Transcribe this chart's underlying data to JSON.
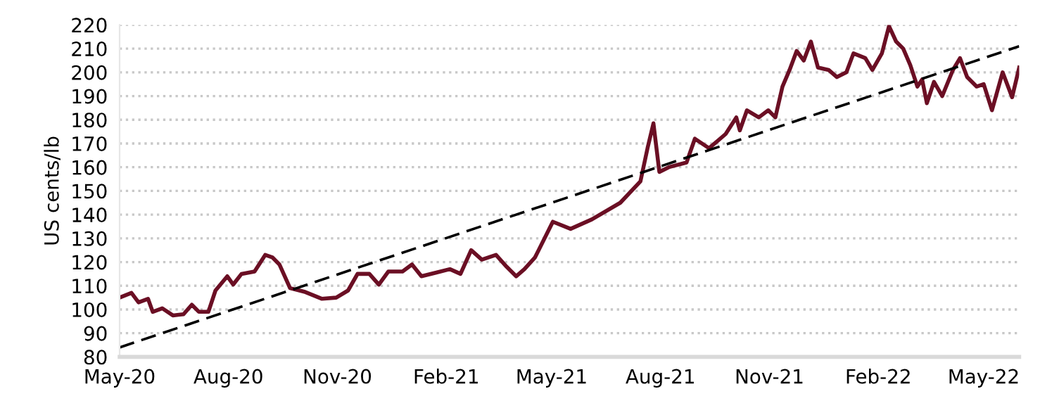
{
  "chart_data": {
    "type": "line",
    "ylabel": "US cents/lb",
    "xlim": [
      "2020-05-01",
      "2022-05-31"
    ],
    "ylim": [
      80,
      220
    ],
    "xticks": [
      {
        "value": "2020-05-01",
        "label": "May-20"
      },
      {
        "value": "2020-08-01",
        "label": "Aug-20"
      },
      {
        "value": "2020-11-01",
        "label": "Nov-20"
      },
      {
        "value": "2021-02-01",
        "label": "Feb-21"
      },
      {
        "value": "2021-05-01",
        "label": "May-21"
      },
      {
        "value": "2021-08-01",
        "label": "Aug-21"
      },
      {
        "value": "2021-11-01",
        "label": "Nov-21"
      },
      {
        "value": "2022-02-01",
        "label": "Feb-22"
      },
      {
        "value": "2022-05-01",
        "label": "May-22"
      }
    ],
    "yticks": [
      80,
      90,
      100,
      110,
      120,
      130,
      140,
      150,
      160,
      170,
      180,
      190,
      200,
      210,
      220
    ],
    "grid": "y",
    "legend": false,
    "series": [
      {
        "color": "#6b0f24",
        "line_style": "solid",
        "x": [
          "2020-05-01",
          "2020-05-11",
          "2020-05-17",
          "2020-05-25",
          "2020-05-29",
          "2020-06-06",
          "2020-06-15",
          "2020-06-24",
          "2020-07-01",
          "2020-07-07",
          "2020-07-15",
          "2020-07-21",
          "2020-07-31",
          "2020-08-05",
          "2020-08-12",
          "2020-08-23",
          "2020-09-01",
          "2020-09-07",
          "2020-09-13",
          "2020-09-22",
          "2020-10-04",
          "2020-10-19",
          "2020-10-31",
          "2020-11-10",
          "2020-11-18",
          "2020-11-28",
          "2020-12-06",
          "2020-12-14",
          "2020-12-26",
          "2021-01-03",
          "2021-01-11",
          "2021-01-23",
          "2021-02-04",
          "2021-02-13",
          "2021-02-22",
          "2021-03-03",
          "2021-03-15",
          "2021-03-24",
          "2021-04-01",
          "2021-04-08",
          "2021-04-17",
          "2021-05-02",
          "2021-05-17",
          "2021-06-04",
          "2021-06-28",
          "2021-07-15",
          "2021-07-21",
          "2021-07-26",
          "2021-07-31",
          "2021-08-08",
          "2021-08-23",
          "2021-08-30",
          "2021-09-11",
          "2021-09-25",
          "2021-10-04",
          "2021-10-07",
          "2021-10-13",
          "2021-10-23",
          "2021-10-31",
          "2021-11-06",
          "2021-11-12",
          "2021-11-18",
          "2021-11-24",
          "2021-11-30",
          "2021-12-06",
          "2021-12-12",
          "2021-12-21",
          "2021-12-28",
          "2022-01-05",
          "2022-01-11",
          "2022-01-21",
          "2022-01-27",
          "2022-02-04",
          "2022-02-10",
          "2022-02-16",
          "2022-02-22",
          "2022-02-28",
          "2022-03-06",
          "2022-03-10",
          "2022-03-14",
          "2022-03-20",
          "2022-03-27",
          "2022-04-05",
          "2022-04-11",
          "2022-04-17",
          "2022-04-25",
          "2022-05-01",
          "2022-05-08",
          "2022-05-17",
          "2022-05-25",
          "2022-05-31"
        ],
        "values": [
          105,
          107,
          103,
          104.5,
          99,
          100.5,
          97.5,
          98,
          102,
          99,
          99,
          108,
          114,
          110.5,
          115,
          116,
          123,
          122,
          119,
          109,
          107.5,
          104.5,
          105,
          108,
          115,
          115,
          110.5,
          116,
          116,
          119,
          114,
          115.5,
          117,
          115,
          125,
          121,
          123,
          118,
          114,
          117,
          122,
          137,
          134,
          138,
          145,
          154,
          168,
          178.5,
          158,
          160,
          162,
          172,
          168,
          174,
          181,
          175.5,
          184,
          181,
          184,
          181,
          194,
          201,
          209,
          205,
          213,
          202,
          201,
          198,
          200,
          208,
          206,
          201,
          208,
          219.5,
          213,
          210,
          203,
          194,
          197,
          187,
          196,
          190,
          201,
          206,
          198,
          194,
          195,
          184,
          200,
          189.5,
          202
        ]
      },
      {
        "color": "#000000",
        "line_style": "dashed",
        "x": [
          "2020-05-01",
          "2022-05-31"
        ],
        "values": [
          84,
          211
        ]
      }
    ]
  }
}
